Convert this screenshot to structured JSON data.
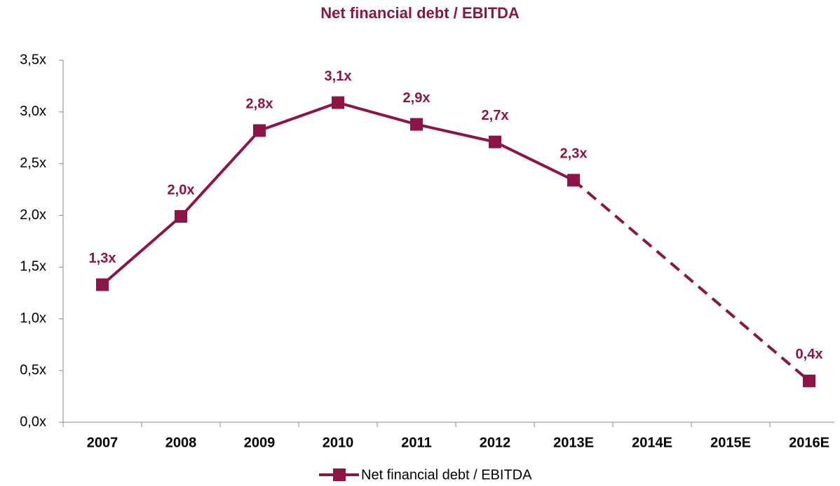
{
  "chart_data": {
    "type": "line",
    "title": "Net financial debt / EBITDA",
    "categories": [
      "2007",
      "2008",
      "2009",
      "2010",
      "2011",
      "2012",
      "2013E",
      "2014E",
      "2015E",
      "2016E"
    ],
    "series": [
      {
        "name": "Net financial debt / EBITDA",
        "color": "#8c1446",
        "values": [
          1.33,
          1.99,
          2.82,
          3.09,
          2.88,
          2.71,
          2.34,
          null,
          null,
          0.4
        ],
        "value_labels": [
          "1,3x",
          "2,0x",
          "2,8x",
          "3,1x",
          "2,9x",
          "2,7x",
          "2,3x",
          null,
          null,
          "0,4x"
        ]
      }
    ],
    "ylim": [
      0,
      3.5
    ],
    "yticks": [
      {
        "value": 0,
        "label": "0,0x"
      },
      {
        "value": 0.5,
        "label": "0,5x"
      },
      {
        "value": 1,
        "label": "1,0x"
      },
      {
        "value": 1.5,
        "label": "1,5x"
      },
      {
        "value": 2,
        "label": "2,0x"
      },
      {
        "value": 2.5,
        "label": "2,5x"
      },
      {
        "value": 3,
        "label": "3,0x"
      },
      {
        "value": 3.5,
        "label": "3,5x"
      }
    ],
    "grid": false,
    "legend": "bottom"
  }
}
